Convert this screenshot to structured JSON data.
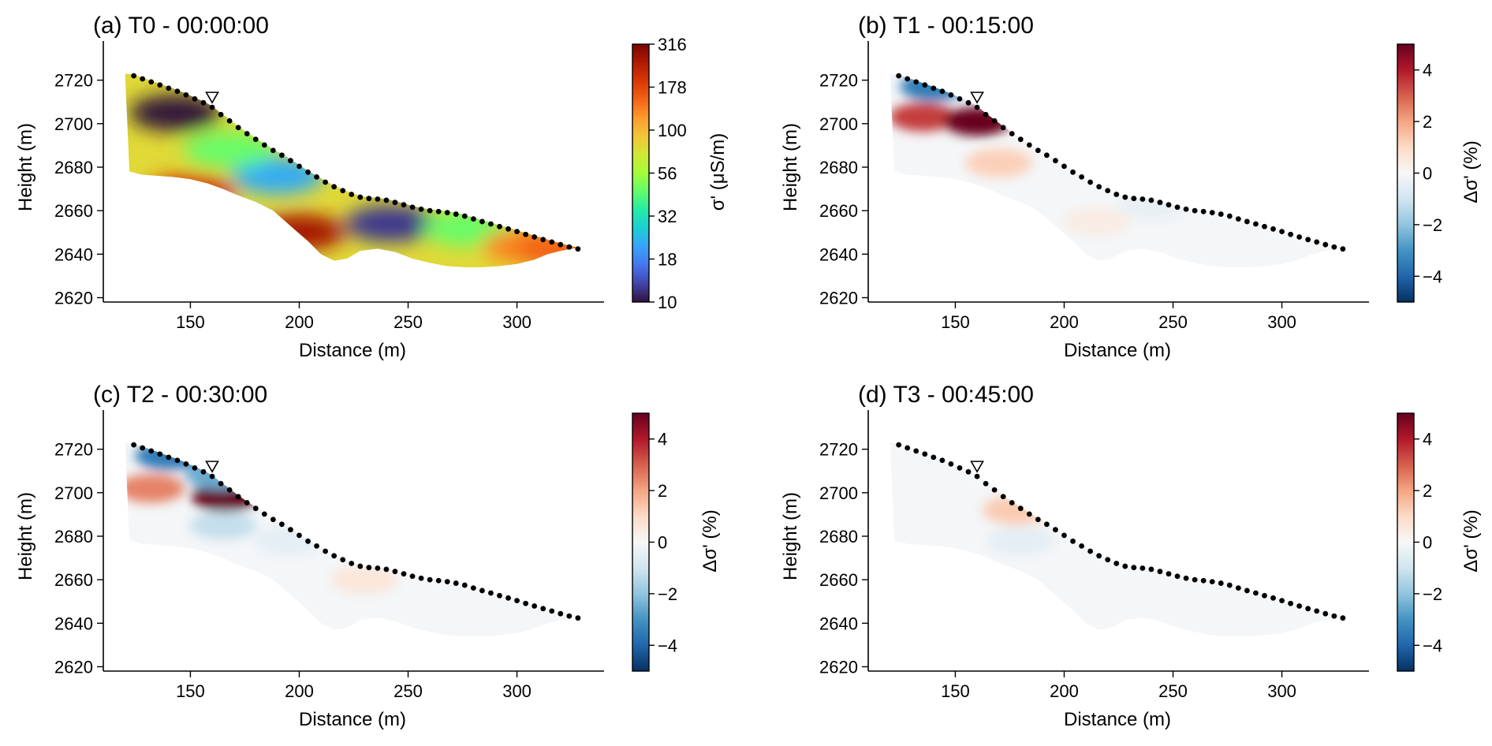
{
  "colors": {
    "electrode": "#000000",
    "spine": "#000000",
    "turbo": [
      "#30123b",
      "#4145ab",
      "#4675ed",
      "#39a2fc",
      "#1bcfd4",
      "#24eca6",
      "#61fc6c",
      "#a4fc3b",
      "#d1e834",
      "#f3c63a",
      "#fe9b2d",
      "#f36315",
      "#d93806",
      "#b11901",
      "#7a0403"
    ],
    "rdbu": [
      "#053061",
      "#2166ac",
      "#4393c3",
      "#92c5de",
      "#d1e5f0",
      "#f7f7f7",
      "#fddbc7",
      "#f4a582",
      "#d6604d",
      "#b2182b",
      "#67001f"
    ]
  },
  "icons": {
    "marker": "triangle-down-icon"
  },
  "chart_data": [
    {
      "id": "a",
      "type": "heatmap",
      "title": "(a) T0 - 00:00:00",
      "xlabel": "Distance (m)",
      "ylabel": "Height (m)",
      "xlim": [
        110,
        340
      ],
      "ylim": [
        2618,
        2738
      ],
      "xticks": [
        150,
        200,
        250,
        300
      ],
      "yticks": [
        2620,
        2640,
        2660,
        2680,
        2700,
        2720
      ],
      "colorbar": {
        "label": "σ' (μS/m)",
        "scale": "log",
        "cmap": "turbo",
        "range": [
          10,
          316
        ],
        "ticks": [
          "316",
          "178",
          "100",
          "56",
          "32",
          "18",
          "10"
        ]
      },
      "blobs": [
        {
          "x": 143,
          "y": 2705,
          "value": 10
        },
        {
          "x": 190,
          "y": 2676,
          "value": 22
        },
        {
          "x": 242,
          "y": 2654,
          "value": 12
        },
        {
          "x": 168,
          "y": 2688,
          "value": 45
        },
        {
          "x": 278,
          "y": 2652,
          "value": 45
        },
        {
          "x": 305,
          "y": 2644,
          "value": 130
        },
        {
          "x": 320,
          "y": 2642,
          "value": 150
        },
        {
          "x": 150,
          "y": 2668,
          "value": 200
        },
        {
          "x": 200,
          "y": 2650,
          "value": 260
        }
      ]
    },
    {
      "id": "b",
      "type": "heatmap",
      "title": "(b) T1 - 00:15:00",
      "xlabel": "Distance (m)",
      "ylabel": "Height (m)",
      "xlim": [
        110,
        340
      ],
      "ylim": [
        2618,
        2738
      ],
      "xticks": [
        150,
        200,
        250,
        300
      ],
      "yticks": [
        2620,
        2640,
        2660,
        2680,
        2700,
        2720
      ],
      "colorbar": {
        "label": "Δσ' (%)",
        "scale": "linear",
        "cmap": "rdbu",
        "range": [
          -5,
          5
        ],
        "ticks": [
          "4",
          "2",
          "0",
          "−2",
          "−4"
        ]
      },
      "blobs": [
        {
          "x": 135,
          "y": 2703,
          "value": 3.5
        },
        {
          "x": 160,
          "y": 2701,
          "value": 5
        },
        {
          "x": 140,
          "y": 2717,
          "value": -3.5
        },
        {
          "x": 170,
          "y": 2682,
          "value": 1.2
        },
        {
          "x": 240,
          "y": 2662,
          "value": -0.4
        },
        {
          "x": 215,
          "y": 2655,
          "value": 0.4
        }
      ]
    },
    {
      "id": "c",
      "type": "heatmap",
      "title": "(c) T2 - 00:30:00",
      "xlabel": "Distance (m)",
      "ylabel": "Height (m)",
      "xlim": [
        110,
        340
      ],
      "ylim": [
        2618,
        2738
      ],
      "xticks": [
        150,
        200,
        250,
        300
      ],
      "yticks": [
        2620,
        2640,
        2660,
        2680,
        2700,
        2720
      ],
      "colorbar": {
        "label": "Δσ' (%)",
        "scale": "linear",
        "cmap": "rdbu",
        "range": [
          -5,
          5
        ],
        "ticks": [
          "4",
          "2",
          "0",
          "−2",
          "−4"
        ]
      },
      "blobs": [
        {
          "x": 132,
          "y": 2702,
          "value": 2.5
        },
        {
          "x": 166,
          "y": 2698,
          "value": 5
        },
        {
          "x": 140,
          "y": 2717,
          "value": -3.5
        },
        {
          "x": 163,
          "y": 2708,
          "value": -2.5
        },
        {
          "x": 165,
          "y": 2685,
          "value": -1.2
        },
        {
          "x": 230,
          "y": 2660,
          "value": 0.6
        },
        {
          "x": 195,
          "y": 2678,
          "value": -0.5
        }
      ]
    },
    {
      "id": "d",
      "type": "heatmap",
      "title": "(d) T3 - 00:45:00",
      "xlabel": "Distance (m)",
      "ylabel": "Height (m)",
      "xlim": [
        110,
        340
      ],
      "ylim": [
        2618,
        2738
      ],
      "xticks": [
        150,
        200,
        250,
        300
      ],
      "yticks": [
        2620,
        2640,
        2660,
        2680,
        2700,
        2720
      ],
      "colorbar": {
        "label": "Δσ' (%)",
        "scale": "linear",
        "cmap": "rdbu",
        "range": [
          -5,
          5
        ],
        "ticks": [
          "4",
          "2",
          "0",
          "−2",
          "−4"
        ]
      },
      "blobs": [
        {
          "x": 178,
          "y": 2692,
          "value": 1.3
        },
        {
          "x": 180,
          "y": 2678,
          "value": -0.5
        }
      ]
    }
  ],
  "electrodes": {
    "x": [
      124,
      128,
      132,
      136,
      140,
      144,
      148,
      152,
      156,
      160,
      164,
      168,
      172,
      176,
      180,
      184,
      188,
      192,
      196,
      200,
      204,
      208,
      212,
      216,
      220,
      224,
      228,
      232,
      236,
      240,
      244,
      248,
      252,
      256,
      260,
      264,
      268,
      272,
      276,
      280,
      284,
      288,
      292,
      296,
      300,
      304,
      308,
      312,
      316,
      320,
      324,
      328
    ],
    "y": [
      2722,
      2720.6,
      2719.2,
      2717.8,
      2716.3,
      2714.9,
      2713.2,
      2711.4,
      2709.6,
      2707.5,
      2704.2,
      2701.3,
      2698.2,
      2695.4,
      2692.8,
      2690.2,
      2687.7,
      2685.5,
      2683,
      2680.4,
      2677.7,
      2675.5,
      2673.1,
      2671,
      2669.2,
      2667.5,
      2666.2,
      2665.6,
      2665.3,
      2664.8,
      2663.8,
      2662.7,
      2661.6,
      2660.7,
      2660,
      2659.6,
      2659.1,
      2658.4,
      2657.5,
      2656.2,
      2655,
      2653.9,
      2652.7,
      2651.6,
      2650.4,
      2649.1,
      2647.9,
      2646.7,
      2645.6,
      2644.4,
      2643.3,
      2642.4
    ]
  },
  "mesh_bottom": {
    "x": [
      122,
      128,
      135,
      142,
      150,
      158,
      165,
      172,
      180,
      188,
      196,
      204,
      210,
      216,
      222,
      228,
      236,
      244,
      252,
      260,
      268,
      276,
      284,
      292,
      300,
      308,
      314,
      320
    ],
    "y": [
      2678,
      2676.5,
      2676,
      2675.5,
      2674.5,
      2672.5,
      2670,
      2667,
      2664,
      2660,
      2653,
      2646,
      2640,
      2637,
      2638,
      2641.5,
      2642.5,
      2641,
      2638,
      2636,
      2634.5,
      2634,
      2634,
      2634.5,
      2635.5,
      2637.5,
      2640,
      2641.5
    ]
  },
  "marker_x": 160
}
